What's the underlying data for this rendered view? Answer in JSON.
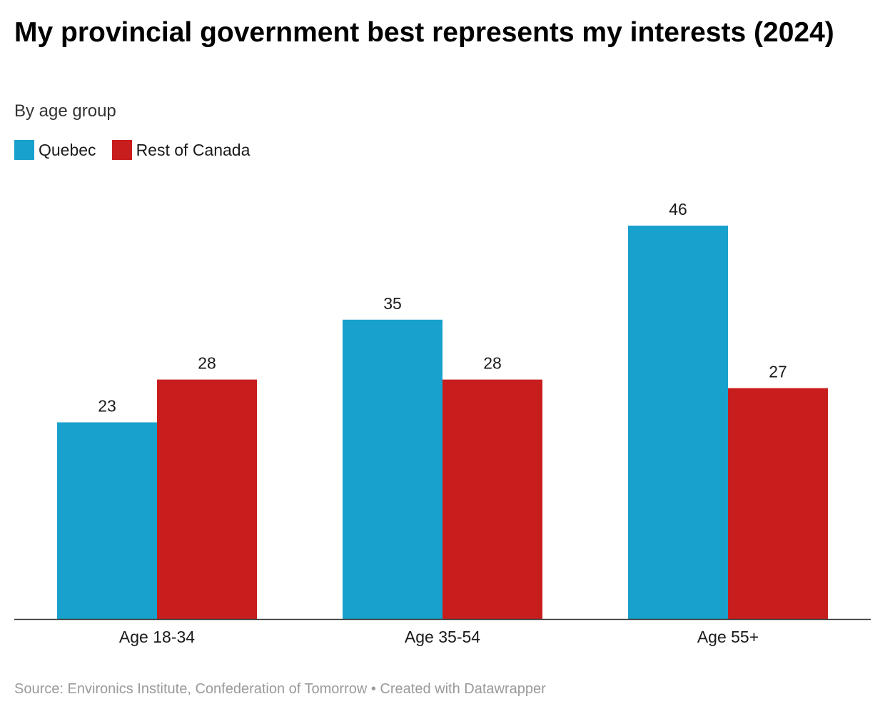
{
  "header": {
    "title": "My provincial government best represents my interests (2024)",
    "subtitle": "By age group"
  },
  "legend": [
    {
      "label": "Quebec",
      "color": "#19a1cd"
    },
    {
      "label": "Rest of Canada",
      "color": "#c71e1d"
    }
  ],
  "footer": {
    "text": "Source: Environics Institute, Confederation of Tomorrow • Created with Datawrapper"
  },
  "chart_data": {
    "type": "bar",
    "title": "My provincial government best represents my interests (2024)",
    "subtitle": "By age group",
    "categories": [
      "Age 18-34",
      "Age 35-54",
      "Age 55+"
    ],
    "series": [
      {
        "name": "Quebec",
        "values": [
          23,
          35,
          46
        ],
        "color": "#19a1cd"
      },
      {
        "name": "Rest of Canada",
        "values": [
          28,
          28,
          27
        ],
        "color": "#c71e1d"
      }
    ],
    "ylim": [
      0,
      46
    ],
    "grid": false,
    "legend": "top-left",
    "data_labels": true
  }
}
